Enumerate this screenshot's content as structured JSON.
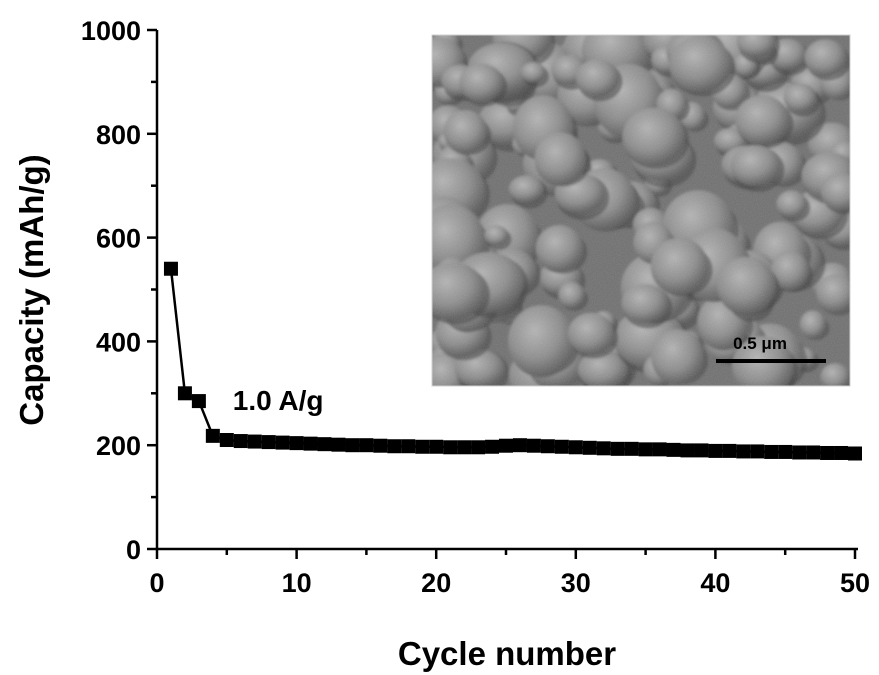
{
  "chart_data": {
    "type": "scatter",
    "xlabel": "Cycle number",
    "ylabel": "Capacity (mAh/g)",
    "xlim": [
      0,
      50
    ],
    "ylim": [
      0,
      1000
    ],
    "xticks": [
      0,
      10,
      20,
      30,
      40,
      50
    ],
    "yticks": [
      0,
      200,
      400,
      600,
      800,
      1000
    ],
    "grid": false,
    "colors": {
      "series": "#000000"
    },
    "series": [
      {
        "x": [
          1,
          2,
          3,
          4,
          5,
          6,
          7,
          8,
          9,
          10,
          11,
          12,
          13,
          14,
          15,
          16,
          17,
          18,
          19,
          20,
          21,
          22,
          23,
          24,
          25,
          26,
          27,
          28,
          29,
          30,
          31,
          32,
          33,
          34,
          35,
          36,
          37,
          38,
          39,
          40,
          41,
          42,
          43,
          44,
          45,
          46,
          47,
          48,
          49,
          50
        ],
        "values": [
          540,
          300,
          285,
          218,
          210,
          208,
          207,
          206,
          205,
          204,
          203,
          202,
          201,
          200,
          200,
          199,
          198,
          198,
          197,
          197,
          196,
          196,
          196,
          197,
          199,
          200,
          199,
          198,
          197,
          196,
          195,
          194,
          193,
          193,
          192,
          192,
          191,
          190,
          190,
          189,
          189,
          188,
          188,
          187,
          187,
          186,
          186,
          185,
          185,
          184
        ]
      }
    ],
    "annotations": [
      {
        "text": "1.0 A/g",
        "x": 6,
        "y": 268
      }
    ],
    "inset": {
      "type": "SEM micrograph",
      "scale_bar_label": "0.5 μm"
    }
  }
}
